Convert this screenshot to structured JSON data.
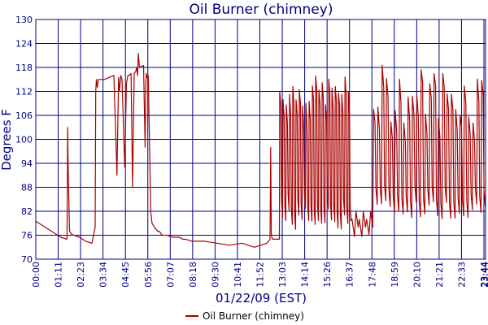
{
  "chart_data": {
    "type": "line",
    "title": "Oil Burner (chimney)",
    "xlabel": "01/22/09 (EST)",
    "ylabel": "Degrees F",
    "ylim": [
      70,
      130
    ],
    "yticks": [
      "70",
      "76",
      "82",
      "88",
      "94",
      "100",
      "106",
      "112",
      "118",
      "124",
      "130"
    ],
    "xlim_minutes": [
      0,
      1440
    ],
    "xticks": [
      "00:00",
      "01:11",
      "02:23",
      "03:34",
      "04:45",
      "05:56",
      "07:07",
      "08:18",
      "09:30",
      "10:41",
      "11:52",
      "13:03",
      "14:14",
      "15:26",
      "16:37",
      "17:48",
      "18:59",
      "20:10",
      "21:21",
      "22:33",
      "23:44",
      "23:44"
    ],
    "grid": true,
    "legend": "bottom-center",
    "colors": {
      "series": "#aa0000",
      "grid": "#000080",
      "text": "#000080"
    },
    "series": [
      {
        "name": "Oil Burner (chimney)",
        "x_minutes": [
          0,
          40,
          80,
          100,
          102,
          104,
          108,
          115,
          140,
          160,
          180,
          190,
          192,
          194,
          197,
          200,
          220,
          250,
          260,
          265,
          268,
          272,
          276,
          285,
          290,
          295,
          300,
          305,
          310,
          315,
          320,
          323,
          326,
          328,
          330,
          332,
          345,
          350,
          352,
          354,
          356,
          360,
          365,
          368,
          372,
          380,
          390,
          395,
          397,
          400,
          402,
          405,
          410,
          420,
          440,
          460,
          470,
          480,
          500,
          540,
          580,
          620,
          660,
          700,
          720,
          740,
          750,
          752,
          754,
          756,
          758,
          762,
          780
        ],
        "values": [
          79.5,
          77.5,
          75.5,
          75.0,
          103.0,
          92.0,
          77.0,
          76.2,
          75.5,
          74.5,
          74.0,
          78.0,
          112.0,
          115.0,
          113.0,
          115.0,
          115.0,
          116.0,
          91.0,
          115.5,
          112.0,
          116.0,
          115.0,
          93.0,
          114.0,
          116.0,
          116.0,
          116.5,
          88.0,
          116.5,
          117.0,
          118.0,
          116.0,
          121.5,
          120.0,
          118.0,
          118.5,
          98.0,
          113.0,
          116.5,
          115.5,
          116.0,
          95.0,
          82.0,
          79.0,
          78.0,
          77.0,
          77.0,
          76.8,
          76.5,
          76.2,
          76.0,
          76.0,
          76.0,
          75.5,
          75.5,
          75.0,
          75.0,
          74.5,
          74.5,
          74.0,
          73.5,
          74.0,
          73.0,
          73.5,
          74.0,
          75.0,
          98.0,
          76.0,
          75.5,
          75.0,
          75.0,
          75.0
        ]
      }
    ],
    "oscillation_segments": [
      {
        "x_start_minutes": 780,
        "x_end_minutes": 1010,
        "cycles": 22,
        "low_min": 77,
        "low_max": 83,
        "high_min": 108,
        "high_max": 116
      },
      {
        "x_start_minutes": 1010,
        "x_end_minutes": 1080,
        "cycles": 3,
        "low": 78,
        "high": 80
      },
      {
        "x_start_minutes": 1080,
        "x_end_minutes": 1440,
        "cycles": 26,
        "low_min": 80,
        "low_max": 85,
        "high_min": 104,
        "high_max": 119
      }
    ]
  },
  "legend": {
    "label": "Oil Burner (chimney)"
  }
}
